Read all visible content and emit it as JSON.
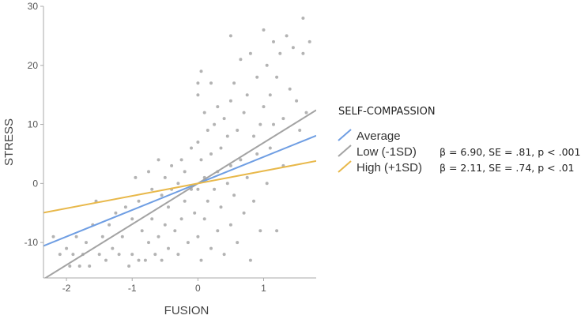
{
  "chart_data": {
    "type": "scatter",
    "xlabel": "FUSION",
    "ylabel": "STRESS",
    "xlim": [
      -2.35,
      1.8
    ],
    "ylim": [
      -16,
      30
    ],
    "x_ticks": [
      -2,
      -1,
      0,
      1
    ],
    "y_ticks": [
      -10,
      0,
      10,
      20,
      30
    ],
    "grid": false,
    "legend_title": "SELF-COMPASSION",
    "legend_position": "right",
    "lines": [
      {
        "name": "Average",
        "color": "#6f9ee3",
        "slope": 4.5,
        "intercept": 0,
        "stat": ""
      },
      {
        "name": "Low (-1SD)",
        "color": "#a3a3a3",
        "slope": 6.9,
        "intercept": 0,
        "stat": "β = 6.90, SE = .81, p < .001"
      },
      {
        "name": "High (+1SD)",
        "color": "#e8b84a",
        "slope": 2.11,
        "intercept": 0,
        "stat": "β = 2.11, SE = .74, p < .01"
      }
    ],
    "points": [
      [
        -2.2,
        -9
      ],
      [
        -2.1,
        -12
      ],
      [
        -2.0,
        -11
      ],
      [
        -1.95,
        -14
      ],
      [
        -1.9,
        -12
      ],
      [
        -1.85,
        -9
      ],
      [
        -1.8,
        -14
      ],
      [
        -1.75,
        -12
      ],
      [
        -1.7,
        -10
      ],
      [
        -1.65,
        -14
      ],
      [
        -1.6,
        -7
      ],
      [
        -1.55,
        -3
      ],
      [
        -1.5,
        -12
      ],
      [
        -1.45,
        -9
      ],
      [
        -1.4,
        -13
      ],
      [
        -1.35,
        -7
      ],
      [
        -1.3,
        -11
      ],
      [
        -1.25,
        -5
      ],
      [
        -1.2,
        -12
      ],
      [
        -1.15,
        -9
      ],
      [
        -1.1,
        -4
      ],
      [
        -1.05,
        -14
      ],
      [
        -1.0,
        -6
      ],
      [
        -1.0,
        -12
      ],
      [
        -0.95,
        1
      ],
      [
        -0.9,
        -13
      ],
      [
        -0.9,
        -3
      ],
      [
        -0.85,
        -8
      ],
      [
        -0.8,
        -13
      ],
      [
        -0.75,
        2
      ],
      [
        -0.75,
        -10
      ],
      [
        -0.7,
        -1
      ],
      [
        -0.7,
        -6
      ],
      [
        -0.65,
        -12
      ],
      [
        -0.6,
        4
      ],
      [
        -0.6,
        -9
      ],
      [
        -0.55,
        -2
      ],
      [
        -0.55,
        -13
      ],
      [
        -0.5,
        1
      ],
      [
        -0.5,
        -7
      ],
      [
        -0.45,
        -4
      ],
      [
        -0.45,
        -11
      ],
      [
        -0.4,
        3
      ],
      [
        -0.4,
        -1
      ],
      [
        -0.35,
        -8
      ],
      [
        -0.3,
        0
      ],
      [
        -0.3,
        -12
      ],
      [
        -0.25,
        4
      ],
      [
        -0.25,
        -6
      ],
      [
        -0.2,
        -3
      ],
      [
        -0.2,
        2
      ],
      [
        -0.15,
        -10
      ],
      [
        -0.1,
        6
      ],
      [
        -0.1,
        -1
      ],
      [
        -0.05,
        -5
      ],
      [
        0.0,
        17
      ],
      [
        0.0,
        15
      ],
      [
        0.0,
        7
      ],
      [
        0.0,
        -1
      ],
      [
        0.0,
        -9
      ],
      [
        0.05,
        19
      ],
      [
        0.05,
        4
      ],
      [
        0.05,
        -13
      ],
      [
        0.1,
        12
      ],
      [
        0.1,
        1
      ],
      [
        0.1,
        -6
      ],
      [
        0.15,
        9
      ],
      [
        0.15,
        -3
      ],
      [
        0.2,
        17
      ],
      [
        0.2,
        5
      ],
      [
        0.2,
        -11
      ],
      [
        0.25,
        10
      ],
      [
        0.25,
        -1
      ],
      [
        0.3,
        13
      ],
      [
        0.3,
        2
      ],
      [
        0.3,
        -8
      ],
      [
        0.35,
        6
      ],
      [
        0.35,
        -4
      ],
      [
        0.4,
        11
      ],
      [
        0.4,
        -12
      ],
      [
        0.45,
        8
      ],
      [
        0.45,
        0
      ],
      [
        0.5,
        25
      ],
      [
        0.5,
        14
      ],
      [
        0.5,
        3
      ],
      [
        0.5,
        -7
      ],
      [
        0.55,
        17
      ],
      [
        0.55,
        -2
      ],
      [
        0.6,
        9
      ],
      [
        0.6,
        -10
      ],
      [
        0.65,
        21
      ],
      [
        0.65,
        4
      ],
      [
        0.7,
        12
      ],
      [
        0.7,
        -5
      ],
      [
        0.75,
        15
      ],
      [
        0.75,
        1
      ],
      [
        0.8,
        22
      ],
      [
        0.8,
        -13
      ],
      [
        0.85,
        8
      ],
      [
        0.85,
        -3
      ],
      [
        0.9,
        18
      ],
      [
        0.9,
        5
      ],
      [
        0.95,
        10
      ],
      [
        0.95,
        -8
      ],
      [
        1.0,
        26
      ],
      [
        1.0,
        13
      ],
      [
        1.05,
        20
      ],
      [
        1.05,
        0
      ],
      [
        1.1,
        15
      ],
      [
        1.1,
        6
      ],
      [
        1.15,
        24
      ],
      [
        1.15,
        10
      ],
      [
        1.2,
        18
      ],
      [
        1.2,
        -8
      ],
      [
        1.25,
        22
      ],
      [
        1.3,
        11
      ],
      [
        1.3,
        3
      ],
      [
        1.35,
        25
      ],
      [
        1.4,
        16
      ],
      [
        1.45,
        23
      ],
      [
        1.5,
        14
      ],
      [
        1.55,
        9
      ],
      [
        1.6,
        28
      ],
      [
        1.6,
        22
      ],
      [
        1.65,
        12
      ],
      [
        1.7,
        24
      ]
    ]
  }
}
